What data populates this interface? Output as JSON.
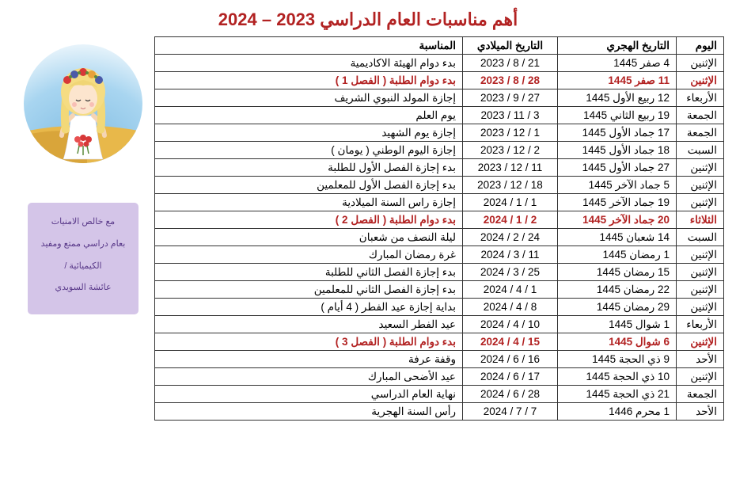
{
  "title": "أهم مناسبات العام الدراسي 2023 – 2024",
  "headers": {
    "day": "اليوم",
    "hijri": "التاريخ الهجري",
    "gregorian": "التاريخ الميلادي",
    "occasion": "المناسبة"
  },
  "rows": [
    {
      "day": "الإثنين",
      "hijri": "4 صفر 1445",
      "greg": "21 / 8 / 2023",
      "occ": "بدء دوام الهيئة الاكاديمية",
      "hl": false
    },
    {
      "day": "الإثنين",
      "hijri": "11 صفر 1445",
      "greg": "28 / 8 / 2023",
      "occ": "بدء دوام الطلبة ( الفصل 1 )",
      "hl": true
    },
    {
      "day": "الأربعاء",
      "hijri": "12 ربيع الأول 1445",
      "greg": "27 / 9 / 2023",
      "occ": "إجازة المولد النبوي الشريف",
      "hl": false
    },
    {
      "day": "الجمعة",
      "hijri": "19 ربيع الثاني 1445",
      "greg": "3 / 11 / 2023",
      "occ": "يوم العلم",
      "hl": false
    },
    {
      "day": "الجمعة",
      "hijri": "17 جماد الأول 1445",
      "greg": "1 / 12 / 2023",
      "occ": "إجازة يوم الشهيد",
      "hl": false
    },
    {
      "day": "السبت",
      "hijri": "18 جماد الأول 1445",
      "greg": "2 / 12 / 2023",
      "occ": "إجازة اليوم الوطني ( يومان )",
      "hl": false
    },
    {
      "day": "الإثنين",
      "hijri": "27 جماد الأول 1445",
      "greg": "11 / 12 / 2023",
      "occ": "بدء إجازة الفصل الأول للطلبة",
      "hl": false
    },
    {
      "day": "الإثنين",
      "hijri": "5 جماد الآخر 1445",
      "greg": "18 / 12 / 2023",
      "occ": "بدء إجازة الفصل الأول للمعلمين",
      "hl": false
    },
    {
      "day": "الإثنين",
      "hijri": "19 جماد الآخر 1445",
      "greg": "1 / 1 / 2024",
      "occ": "إجازة راس السنة الميلادية",
      "hl": false
    },
    {
      "day": "الثلاثاء",
      "hijri": "20 جماد الآخر 1445",
      "greg": "2 / 1 / 2024",
      "occ": "بدء دوام الطلبة ( الفصل 2 )",
      "hl": true
    },
    {
      "day": "السبت",
      "hijri": "14 شعبان 1445",
      "greg": "24 / 2 / 2024",
      "occ": "ليلة النصف من شعبان",
      "hl": false
    },
    {
      "day": "الإثنين",
      "hijri": "1 رمضان 1445",
      "greg": "11 / 3 / 2024",
      "occ": "غرة رمضان المبارك",
      "hl": false
    },
    {
      "day": "الإثنين",
      "hijri": "15 رمضان 1445",
      "greg": "25 / 3 / 2024",
      "occ": "بدء إجازة الفصل الثاني للطلبة",
      "hl": false
    },
    {
      "day": "الإثنين",
      "hijri": "22 رمضان 1445",
      "greg": "1 / 4 / 2024",
      "occ": "بدء إجازة الفصل الثاني للمعلمين",
      "hl": false
    },
    {
      "day": "الإثنين",
      "hijri": "29 رمضان 1445",
      "greg": "8 / 4 / 2024",
      "occ": "بداية إجازة عيد الفطر ( 4 أيام )",
      "hl": false
    },
    {
      "day": "الأربعاء",
      "hijri": "1 شوال 1445",
      "greg": "10 / 4 / 2024",
      "occ": "عيد الفطر السعيد",
      "hl": false
    },
    {
      "day": "الإثنين",
      "hijri": "6 شوال 1445",
      "greg": "15 / 4 / 2024",
      "occ": "بدء دوام الطلبة ( الفصل 3 )",
      "hl": true
    },
    {
      "day": "الأحد",
      "hijri": "9 ذي الحجة 1445",
      "greg": "16 / 6 / 2024",
      "occ": "وقفة عرفة",
      "hl": false
    },
    {
      "day": "الإثنين",
      "hijri": "10 ذي الحجة 1445",
      "greg": "17 / 6 / 2024",
      "occ": "عيد الأضحى المبارك",
      "hl": false
    },
    {
      "day": "الجمعة",
      "hijri": "21 ذي الحجة 1445",
      "greg": "28 / 6 / 2024",
      "occ": "نهاية العام الدراسي",
      "hl": false
    },
    {
      "day": "الأحد",
      "hijri": "1 محرم 1446",
      "greg": "7 / 7 / 2024",
      "occ": "رأس السنة الهجرية",
      "hl": false
    }
  ],
  "signature": {
    "line1": "مع خالص الامنيات",
    "line2": "بعام دراسي ممتع ومفيد",
    "line3": "الكيميائية /",
    "line4": "عائشة السويدي"
  },
  "colors": {
    "title": "#B22222",
    "highlight": "#B22222",
    "border": "#333333",
    "sigBg": "#d4c5e8",
    "sigText": "#5a3a8a"
  }
}
